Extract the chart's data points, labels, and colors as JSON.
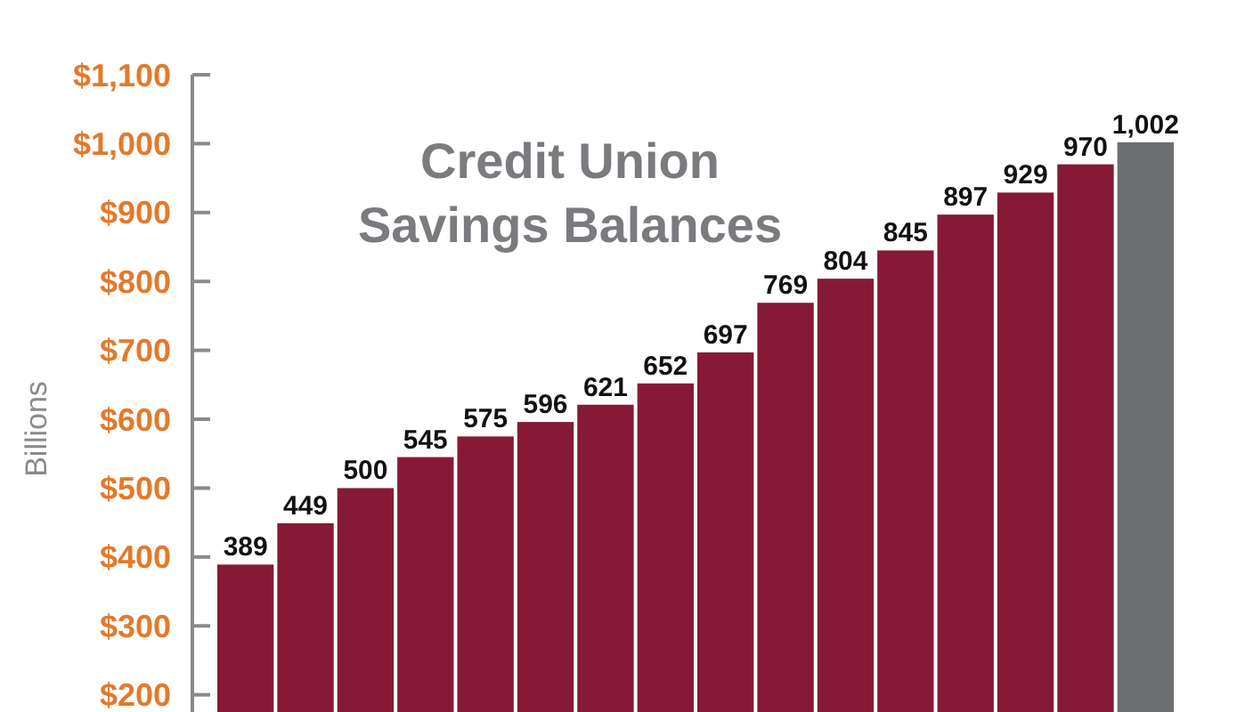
{
  "chart_data": {
    "type": "bar",
    "title": "Credit Union Savings Balances",
    "ylabel": "Billions",
    "categories": [
      null,
      null,
      null,
      null,
      null,
      null,
      null,
      null,
      null,
      null,
      null,
      null,
      null,
      null,
      null,
      null
    ],
    "values": [
      389,
      449,
      500,
      545,
      575,
      596,
      621,
      652,
      697,
      769,
      804,
      845,
      897,
      929,
      970,
      1002
    ],
    "colors": [
      "#861a36",
      "#861a36",
      "#861a36",
      "#861a36",
      "#861a36",
      "#861a36",
      "#861a36",
      "#861a36",
      "#861a36",
      "#861a36",
      "#861a36",
      "#861a36",
      "#861a36",
      "#861a36",
      "#861a36",
      "#6d6e71"
    ],
    "ylim": [
      175,
      1100
    ],
    "yticks": [
      {
        "value": 200,
        "label": "$200"
      },
      {
        "value": 300,
        "label": "$300"
      },
      {
        "value": 400,
        "label": "$400"
      },
      {
        "value": 500,
        "label": "$500"
      },
      {
        "value": 600,
        "label": "$600"
      },
      {
        "value": 700,
        "label": "$700"
      },
      {
        "value": 800,
        "label": "$800"
      },
      {
        "value": 900,
        "label": "$900"
      },
      {
        "value": 1000,
        "label": "$1,000"
      },
      {
        "value": 1100,
        "label": "$1,100"
      }
    ],
    "value_labels": [
      "389",
      "449",
      "500",
      "545",
      "575",
      "596",
      "621",
      "652",
      "697",
      "769",
      "804",
      "845",
      "897",
      "929",
      "970",
      "1,002"
    ],
    "grid": false
  }
}
